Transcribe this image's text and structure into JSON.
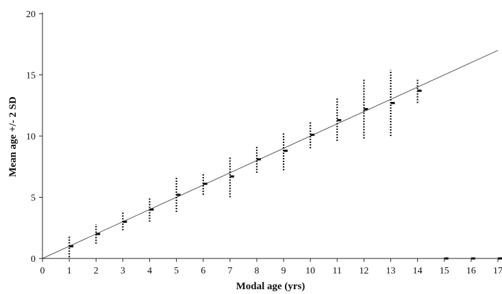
{
  "chart_data": {
    "type": "scatter",
    "xlabel": "Modal age (yrs)",
    "ylabel": "Mean age +/- 2 SD",
    "xlim": [
      0,
      17
    ],
    "ylim": [
      0,
      20
    ],
    "x_ticks": [
      "0",
      "1",
      "2",
      "3",
      "4",
      "5",
      "6",
      "7",
      "8",
      "9",
      "10",
      "11",
      "12",
      "13",
      "14",
      "15",
      "16",
      "17"
    ],
    "y_ticks": [
      "0",
      "5",
      "10",
      "15",
      "20"
    ],
    "grid": false,
    "legend": "none",
    "reference_line": {
      "from": [
        0,
        0
      ],
      "to": [
        17,
        17
      ]
    },
    "series": [
      {
        "x": [
          1,
          2,
          3,
          4,
          5,
          6,
          7,
          8,
          9,
          10,
          11,
          12,
          13,
          14,
          15,
          16,
          17
        ],
        "mean": [
          1.0,
          2.0,
          3.0,
          4.0,
          5.2,
          6.1,
          6.7,
          8.1,
          8.8,
          10.1,
          11.3,
          12.2,
          12.7,
          13.7,
          0,
          0,
          0
        ],
        "lower": [
          0.1,
          1.2,
          2.3,
          3.0,
          3.8,
          5.2,
          5.0,
          7.0,
          7.2,
          9.0,
          9.6,
          9.8,
          10.0,
          12.7,
          0,
          0,
          0
        ],
        "upper": [
          1.8,
          2.8,
          3.8,
          5.0,
          6.6,
          7.0,
          8.3,
          9.2,
          10.3,
          11.2,
          13.1,
          14.6,
          15.4,
          14.6,
          0,
          0,
          0
        ]
      }
    ]
  },
  "colors": {
    "axis": "#222222",
    "marker": "#111111",
    "reference_line": "#555555"
  }
}
